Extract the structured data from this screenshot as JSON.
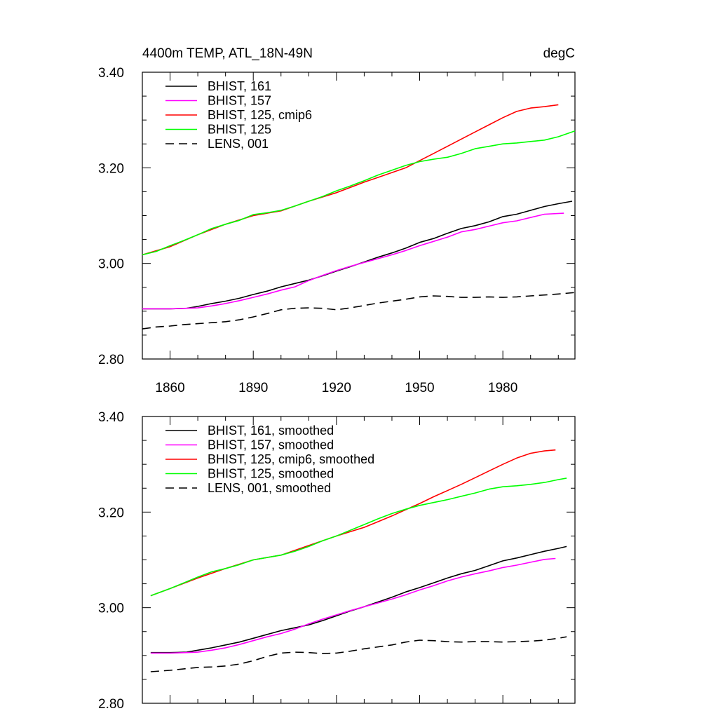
{
  "colors": {
    "black": "#000000",
    "magenta": "#ff00ff",
    "red": "#ff0000",
    "green": "#00ff00"
  },
  "chart_data": [
    {
      "type": "line",
      "title": "4400m TEMP, ATL_18N-49N",
      "units": "degC",
      "xlim": [
        1850,
        2006
      ],
      "ylim": [
        2.8,
        3.4
      ],
      "xticks": [
        1860,
        1890,
        1920,
        1950,
        1980
      ],
      "yticks": [
        2.8,
        3.0,
        3.2,
        3.4
      ],
      "ytick_labels": [
        "2.80",
        "3.00",
        "3.20",
        "3.40"
      ],
      "legend_position": "top-left",
      "series": [
        {
          "name": "BHIST, 161",
          "color": "#000000",
          "dash": "solid",
          "x": [
            1850,
            1860,
            1866,
            1870,
            1875,
            1880,
            1885,
            1890,
            1895,
            1900,
            1905,
            1910,
            1915,
            1920,
            1925,
            1930,
            1935,
            1940,
            1945,
            1950,
            1955,
            1960,
            1965,
            1970,
            1975,
            1980,
            1985,
            1990,
            1995,
            2000,
            2005
          ],
          "y": [
            2.905,
            2.905,
            2.906,
            2.91,
            2.916,
            2.921,
            2.927,
            2.935,
            2.942,
            2.951,
            2.958,
            2.965,
            2.974,
            2.984,
            2.993,
            3.003,
            3.013,
            3.022,
            3.032,
            3.044,
            3.052,
            3.063,
            3.073,
            3.079,
            3.087,
            3.098,
            3.103,
            3.111,
            3.119,
            3.125,
            3.13
          ]
        },
        {
          "name": "BHIST, 157",
          "color": "#ff00ff",
          "dash": "solid",
          "x": [
            1850,
            1860,
            1866,
            1870,
            1875,
            1880,
            1885,
            1890,
            1895,
            1900,
            1905,
            1910,
            1915,
            1920,
            1925,
            1930,
            1935,
            1940,
            1945,
            1950,
            1955,
            1960,
            1965,
            1970,
            1975,
            1980,
            1985,
            1990,
            1995,
            2002
          ],
          "y": [
            2.905,
            2.905,
            2.906,
            2.907,
            2.911,
            2.916,
            2.922,
            2.929,
            2.936,
            2.944,
            2.951,
            2.964,
            2.975,
            2.985,
            2.994,
            3.002,
            3.01,
            3.018,
            3.027,
            3.037,
            3.046,
            3.055,
            3.066,
            3.071,
            3.078,
            3.085,
            3.089,
            3.096,
            3.103,
            3.105
          ]
        },
        {
          "name": "BHIST, 125, cmip6",
          "color": "#ff0000",
          "dash": "solid",
          "x": [
            1850,
            1860,
            1870,
            1880,
            1890,
            1900,
            1910,
            1920,
            1930,
            1935,
            1940,
            1945,
            1950,
            1955,
            1960,
            1965,
            1970,
            1975,
            1980,
            1985,
            1990,
            1995,
            2000
          ],
          "y": [
            3.018,
            3.035,
            3.06,
            3.082,
            3.1,
            3.11,
            3.13,
            3.148,
            3.17,
            3.18,
            3.19,
            3.2,
            3.215,
            3.23,
            3.245,
            3.26,
            3.275,
            3.29,
            3.305,
            3.318,
            3.325,
            3.328,
            3.332
          ]
        },
        {
          "name": "BHIST, 125",
          "color": "#00ff00",
          "dash": "solid",
          "x": [
            1850,
            1855,
            1860,
            1865,
            1870,
            1875,
            1880,
            1885,
            1890,
            1895,
            1900,
            1905,
            1910,
            1915,
            1920,
            1925,
            1930,
            1935,
            1940,
            1945,
            1950,
            1955,
            1960,
            1965,
            1970,
            1975,
            1980,
            1985,
            1990,
            1995,
            2000,
            2006
          ],
          "y": [
            3.018,
            3.025,
            3.037,
            3.048,
            3.06,
            3.073,
            3.082,
            3.09,
            3.102,
            3.106,
            3.111,
            3.12,
            3.13,
            3.14,
            3.152,
            3.162,
            3.173,
            3.185,
            3.195,
            3.205,
            3.213,
            3.218,
            3.222,
            3.23,
            3.24,
            3.245,
            3.25,
            3.252,
            3.255,
            3.258,
            3.265,
            3.277
          ]
        },
        {
          "name": "LENS, 001",
          "color": "#000000",
          "dash": "dashed",
          "x": [
            1850,
            1855,
            1860,
            1865,
            1870,
            1875,
            1880,
            1885,
            1890,
            1895,
            1900,
            1905,
            1910,
            1915,
            1920,
            1925,
            1930,
            1935,
            1940,
            1945,
            1950,
            1955,
            1960,
            1965,
            1970,
            1975,
            1980,
            1985,
            1990,
            1995,
            2000,
            2006
          ],
          "y": [
            2.863,
            2.867,
            2.869,
            2.872,
            2.874,
            2.876,
            2.878,
            2.882,
            2.888,
            2.895,
            2.903,
            2.906,
            2.907,
            2.906,
            2.903,
            2.907,
            2.912,
            2.917,
            2.921,
            2.925,
            2.93,
            2.932,
            2.931,
            2.929,
            2.929,
            2.93,
            2.929,
            2.93,
            2.932,
            2.934,
            2.936,
            2.939
          ]
        }
      ]
    },
    {
      "type": "line",
      "xlim": [
        1850,
        2006
      ],
      "ylim": [
        2.8,
        3.4
      ],
      "xticks": [
        1860,
        1890,
        1920,
        1950,
        1980
      ],
      "yticks": [
        2.8,
        3.0,
        3.2,
        3.4
      ],
      "ytick_labels": [
        "2.80",
        "3.00",
        "3.20",
        "3.40"
      ],
      "legend_position": "top-left",
      "series": [
        {
          "name": "BHIST, 161, smoothed",
          "color": "#000000",
          "dash": "solid",
          "x": [
            1853,
            1860,
            1866,
            1870,
            1875,
            1880,
            1885,
            1890,
            1895,
            1900,
            1905,
            1910,
            1915,
            1920,
            1925,
            1930,
            1935,
            1940,
            1945,
            1950,
            1955,
            1960,
            1965,
            1970,
            1975,
            1980,
            1985,
            1990,
            1995,
            2000,
            2003
          ],
          "y": [
            2.906,
            2.906,
            2.907,
            2.911,
            2.916,
            2.922,
            2.928,
            2.936,
            2.944,
            2.952,
            2.958,
            2.964,
            2.973,
            2.983,
            2.993,
            3.002,
            3.012,
            3.022,
            3.033,
            3.042,
            3.052,
            3.062,
            3.071,
            3.078,
            3.088,
            3.098,
            3.104,
            3.111,
            3.118,
            3.124,
            3.128
          ]
        },
        {
          "name": "BHIST, 157, smoothed",
          "color": "#ff00ff",
          "dash": "solid",
          "x": [
            1853,
            1860,
            1866,
            1870,
            1875,
            1880,
            1885,
            1890,
            1895,
            1900,
            1905,
            1910,
            1915,
            1920,
            1925,
            1930,
            1935,
            1940,
            1945,
            1950,
            1955,
            1960,
            1965,
            1970,
            1975,
            1980,
            1985,
            1990,
            1995,
            1999
          ],
          "y": [
            2.905,
            2.905,
            2.906,
            2.907,
            2.911,
            2.916,
            2.923,
            2.931,
            2.939,
            2.946,
            2.955,
            2.966,
            2.976,
            2.985,
            2.994,
            3.002,
            3.01,
            3.018,
            3.027,
            3.037,
            3.046,
            3.056,
            3.064,
            3.071,
            3.077,
            3.084,
            3.089,
            3.095,
            3.101,
            3.103
          ]
        },
        {
          "name": "BHIST, 125, cmip6, smoothed",
          "color": "#ff0000",
          "dash": "solid",
          "x": [
            1853,
            1860,
            1870,
            1880,
            1890,
            1900,
            1910,
            1920,
            1930,
            1935,
            1940,
            1945,
            1950,
            1955,
            1960,
            1965,
            1970,
            1975,
            1980,
            1985,
            1990,
            1995,
            1999
          ],
          "y": [
            3.025,
            3.04,
            3.062,
            3.082,
            3.1,
            3.11,
            3.13,
            3.15,
            3.168,
            3.18,
            3.192,
            3.205,
            3.218,
            3.232,
            3.245,
            3.258,
            3.272,
            3.286,
            3.3,
            3.313,
            3.323,
            3.328,
            3.33
          ]
        },
        {
          "name": "BHIST, 125, smoothed",
          "color": "#00ff00",
          "dash": "solid",
          "x": [
            1853,
            1860,
            1865,
            1870,
            1875,
            1880,
            1885,
            1890,
            1895,
            1900,
            1905,
            1910,
            1915,
            1920,
            1925,
            1930,
            1935,
            1940,
            1945,
            1950,
            1955,
            1960,
            1965,
            1970,
            1975,
            1980,
            1985,
            1990,
            1995,
            2000,
            2003
          ],
          "y": [
            3.025,
            3.04,
            3.052,
            3.064,
            3.075,
            3.082,
            3.09,
            3.1,
            3.105,
            3.11,
            3.118,
            3.128,
            3.14,
            3.15,
            3.162,
            3.174,
            3.186,
            3.197,
            3.206,
            3.214,
            3.22,
            3.226,
            3.233,
            3.24,
            3.248,
            3.253,
            3.255,
            3.258,
            3.262,
            3.268,
            3.271
          ]
        },
        {
          "name": "LENS, 001, smoothed",
          "color": "#000000",
          "dash": "dashed",
          "x": [
            1853,
            1860,
            1865,
            1870,
            1875,
            1880,
            1885,
            1890,
            1895,
            1900,
            1905,
            1910,
            1915,
            1920,
            1925,
            1930,
            1935,
            1940,
            1945,
            1950,
            1955,
            1960,
            1965,
            1970,
            1975,
            1980,
            1985,
            1990,
            1995,
            2000,
            2003
          ],
          "y": [
            2.866,
            2.869,
            2.872,
            2.875,
            2.876,
            2.878,
            2.882,
            2.889,
            2.898,
            2.905,
            2.907,
            2.906,
            2.904,
            2.905,
            2.909,
            2.914,
            2.918,
            2.922,
            2.928,
            2.932,
            2.931,
            2.929,
            2.928,
            2.929,
            2.929,
            2.928,
            2.929,
            2.93,
            2.932,
            2.936,
            2.939
          ]
        }
      ]
    }
  ]
}
